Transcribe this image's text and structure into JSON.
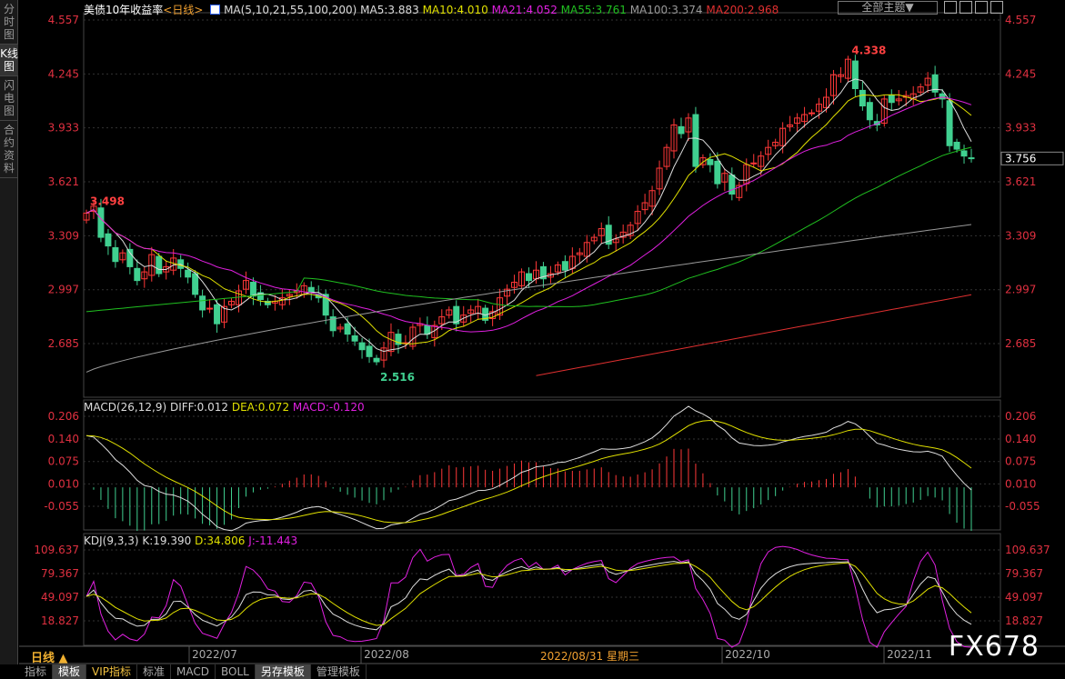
{
  "sidebar": [
    "分时图",
    "K线图",
    "闪电图",
    "合约资料"
  ],
  "header": {
    "title": "美债10年收益率",
    "period": "<日线>",
    "ma_label": "MA(5,10,21,55,100,200)",
    "ma": [
      {
        "t": "MA5:3.883",
        "c": "#dddddd"
      },
      {
        "t": "MA10:4.010",
        "c": "#e0e000"
      },
      {
        "t": "MA21:4.052",
        "c": "#e020e0"
      },
      {
        "t": "MA55:3.761",
        "c": "#20c020"
      },
      {
        "t": "MA100:3.374",
        "c": "#999999"
      },
      {
        "t": "MA200:2.968",
        "c": "#e03030"
      }
    ],
    "theme_button": "全部主题▼"
  },
  "macd_header": {
    "label": "MACD(26,12,9)",
    "diff": "DIFF:0.012",
    "dea": "DEA:0.072",
    "macd": "MACD:-0.120"
  },
  "kdj_header": {
    "label": "KDJ(9,3,3)",
    "k": "K:19.390",
    "d": "D:34.806",
    "j": "J:-11.443"
  },
  "bottom": {
    "period": "日线 ▲",
    "cursor_date": "2022/08/31 星期三"
  },
  "tabs": [
    "指标",
    "模板",
    "VIP指标",
    "标准",
    "MACD",
    "BOLL",
    "另存模板",
    "管理模板"
  ],
  "watermark": "FX678",
  "colors": {
    "up": "#ff3838",
    "down": "#40d090",
    "axis": "#e03040"
  },
  "chart_data": [
    {
      "type": "candlestick",
      "price_ticks": [
        4.557,
        4.245,
        3.933,
        3.621,
        3.309,
        2.997,
        2.685
      ],
      "last_price": 3.756,
      "high_label": "4.338",
      "low_label": "2.516",
      "start_label": "3.498",
      "x_labels": [
        "2022/07",
        "2022/08",
        "2022/10",
        "2022/11"
      ],
      "close": [
        3.44,
        3.48,
        3.3,
        3.25,
        3.16,
        3.21,
        3.13,
        3.05,
        3.1,
        3.2,
        3.09,
        3.13,
        3.18,
        3.12,
        3.07,
        2.97,
        2.88,
        2.89,
        2.8,
        2.9,
        2.93,
        2.99,
        3.05,
        2.96,
        2.94,
        2.91,
        2.93,
        2.95,
        2.97,
        2.99,
        3.02,
        2.98,
        2.95,
        2.85,
        2.76,
        2.78,
        2.74,
        2.7,
        2.65,
        2.61,
        2.58,
        2.66,
        2.75,
        2.68,
        2.69,
        2.78,
        2.8,
        2.74,
        2.79,
        2.84,
        2.88,
        2.8,
        2.85,
        2.88,
        2.9,
        2.82,
        2.87,
        2.95,
        3.0,
        3.04,
        3.1,
        3.05,
        3.11,
        3.06,
        3.09,
        3.14,
        3.11,
        3.19,
        3.21,
        3.27,
        3.3,
        3.35,
        3.26,
        3.29,
        3.33,
        3.37,
        3.45,
        3.5,
        3.57,
        3.7,
        3.82,
        3.95,
        3.9,
        3.99,
        3.71,
        3.76,
        3.72,
        3.61,
        3.67,
        3.55,
        3.6,
        3.72,
        3.73,
        3.77,
        3.82,
        3.85,
        3.93,
        3.95,
        3.99,
        4.01,
        4.02,
        4.07,
        4.11,
        4.24,
        4.24,
        4.33,
        4.16,
        4.06,
        3.98,
        3.95,
        4.1,
        4.08,
        4.1,
        4.12,
        4.13,
        4.17,
        4.22,
        4.14,
        4.1,
        3.83,
        3.81,
        3.77,
        3.76
      ],
      "ma100_range": [
        2.52,
        3.374
      ],
      "ma200_range": [
        2.5,
        2.968
      ]
    },
    {
      "type": "macd",
      "ticks": [
        0.206,
        0.14,
        0.075,
        0.01,
        -0.055
      ]
    },
    {
      "type": "kdj",
      "ticks": [
        109.637,
        79.367,
        49.097,
        18.827
      ]
    }
  ]
}
